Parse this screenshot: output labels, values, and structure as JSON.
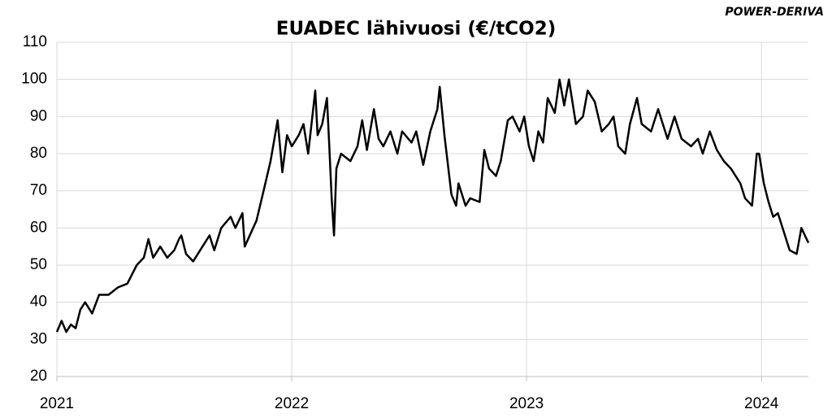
{
  "logo": "POWER-DERIVA",
  "chart_data": {
    "type": "line",
    "title": "EUADEC lähivuosi (€/tCO2)",
    "color": "#000000",
    "grid": true,
    "x": [
      2021.0,
      2021.02,
      2021.04,
      2021.06,
      2021.08,
      2021.1,
      2021.12,
      2021.15,
      2021.18,
      2021.22,
      2021.26,
      2021.3,
      2021.34,
      2021.37,
      2021.39,
      2021.41,
      2021.44,
      2021.47,
      2021.5,
      2021.52,
      2021.53,
      2021.55,
      2021.58,
      2021.62,
      2021.65,
      2021.67,
      2021.7,
      2021.74,
      2021.76,
      2021.79,
      2021.8,
      2021.85,
      2021.88,
      2021.91,
      2021.94,
      2021.96,
      2021.98,
      2022.0,
      2022.03,
      2022.05,
      2022.07,
      2022.1,
      2022.11,
      2022.13,
      2022.15,
      2022.16,
      2022.17,
      2022.18,
      2022.19,
      2022.21,
      2022.25,
      2022.28,
      2022.3,
      2022.32,
      2022.35,
      2022.37,
      2022.39,
      2022.42,
      2022.45,
      2022.47,
      2022.51,
      2022.53,
      2022.56,
      2022.59,
      2022.62,
      2022.63,
      2022.65,
      2022.68,
      2022.7,
      2022.71,
      2022.74,
      2022.76,
      2022.8,
      2022.82,
      2022.84,
      2022.87,
      2022.89,
      2022.92,
      2022.94,
      2022.97,
      2022.99,
      2023.01,
      2023.03,
      2023.05,
      2023.07,
      2023.09,
      2023.12,
      2023.14,
      2023.16,
      2023.18,
      2023.21,
      2023.24,
      2023.26,
      2023.29,
      2023.32,
      2023.35,
      2023.37,
      2023.39,
      2023.42,
      2023.44,
      2023.47,
      2023.49,
      2023.53,
      2023.56,
      2023.6,
      2023.63,
      2023.66,
      2023.7,
      2023.73,
      2023.75,
      2023.78,
      2023.81,
      2023.84,
      2023.87,
      2023.91,
      2023.93,
      2023.96,
      2023.98,
      2023.99,
      2024.01,
      2024.03,
      2024.05,
      2024.07,
      2024.1,
      2024.12,
      2024.15,
      2024.17,
      2024.2
    ],
    "values": [
      32,
      35,
      32,
      34,
      33,
      38,
      40,
      37,
      42,
      42,
      44,
      45,
      50,
      52,
      57,
      52,
      55,
      52,
      54,
      57,
      58,
      53,
      51,
      55,
      58,
      54,
      60,
      63,
      60,
      64,
      55,
      62,
      70,
      78,
      89,
      75,
      85,
      82,
      85,
      88,
      80,
      97,
      85,
      88,
      95,
      82,
      68,
      58,
      76,
      80,
      78,
      82,
      89,
      81,
      92,
      84,
      82,
      86,
      80,
      86,
      83,
      86,
      77,
      86,
      92,
      98,
      85,
      69,
      66,
      72,
      66,
      68,
      67,
      81,
      76,
      74,
      78,
      89,
      90,
      86,
      90,
      82,
      78,
      86,
      83,
      95,
      91,
      100,
      93,
      100,
      88,
      90,
      97,
      94,
      86,
      88,
      90,
      82,
      80,
      88,
      95,
      88,
      86,
      92,
      84,
      90,
      84,
      82,
      84,
      80,
      86,
      81,
      78,
      76,
      72,
      68,
      66,
      80,
      80,
      72,
      67,
      63,
      64,
      58,
      54,
      53,
      60,
      56
    ],
    "xlim": [
      2021,
      2024.2
    ],
    "xticks": [
      2021,
      2022,
      2023,
      2024
    ],
    "ylim": [
      20,
      110
    ],
    "yticks": [
      20,
      30,
      40,
      50,
      60,
      70,
      80,
      90,
      100,
      110
    ]
  }
}
